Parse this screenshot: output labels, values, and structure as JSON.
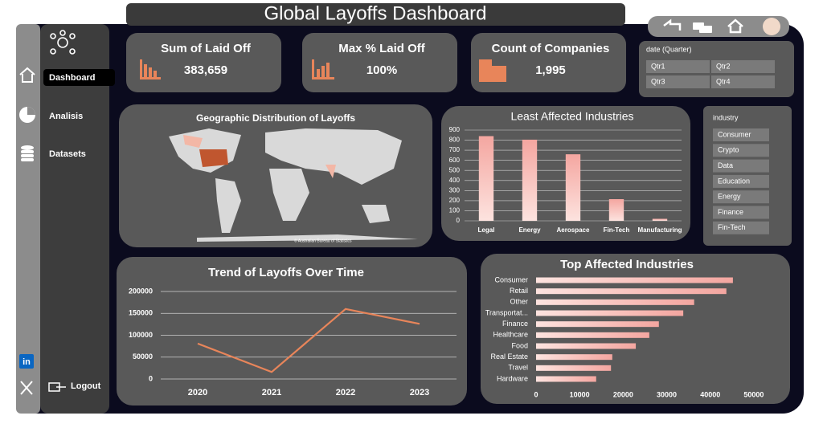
{
  "header": {
    "title": "Global Layoffs Dashboard"
  },
  "nav": {
    "items": [
      "Dashboard",
      "Analisis",
      "Datasets"
    ],
    "logout": "Logout"
  },
  "kpis": [
    {
      "label": "Sum of Laid Off",
      "value": "383,659"
    },
    {
      "label": "Max % Laid Off",
      "value": "100%"
    },
    {
      "label": "Count of Companies",
      "value": "1,995"
    }
  ],
  "slicers": [
    {
      "title": "date (Quarter)",
      "items": [
        "Qtr1",
        "Qtr2",
        "Qtr3",
        "Qtr4"
      ]
    },
    {
      "title": "industry",
      "items": [
        "Consumer",
        "Crypto",
        "Data",
        "Education",
        "Energy",
        "Finance",
        "Fin-Tech"
      ]
    }
  ],
  "map": {
    "title": "Geographic Distribution of Layoffs",
    "attribution": "© Australian Bureau of Statistics"
  },
  "chart_data": [
    {
      "type": "bar",
      "title": "Least Affected Industries",
      "categories": [
        "Legal",
        "Energy",
        "Aerospace",
        "Fin-Tech",
        "Manufacturing"
      ],
      "values": [
        840,
        805,
        660,
        215,
        20
      ],
      "color": "#f4a6a0",
      "ylim": [
        0,
        900
      ],
      "yticks": [
        0,
        100,
        200,
        300,
        400,
        500,
        600,
        700,
        800,
        900
      ],
      "grid": true
    },
    {
      "type": "line",
      "title": "Trend of Layoffs Over Time",
      "categories": [
        "2020",
        "2021",
        "2022",
        "2023"
      ],
      "values": [
        81000,
        16000,
        160000,
        126000
      ],
      "color": "#e8855a",
      "ylim": [
        0,
        200000
      ],
      "yticks": [
        0,
        50000,
        100000,
        150000,
        200000
      ],
      "grid": true
    },
    {
      "type": "barh",
      "title": "Top Affected Industries",
      "categories": [
        "Consumer",
        "Retail",
        "Other",
        "Transportat...",
        "Finance",
        "Healthcare",
        "Food",
        "Real Estate",
        "Travel",
        "Hardware"
      ],
      "values": [
        45200,
        43700,
        36300,
        33800,
        28200,
        26000,
        22900,
        17500,
        17200,
        13800
      ],
      "color": "#f4a6a0",
      "xlim": [
        0,
        55000
      ],
      "xticks": [
        0,
        10000,
        20000,
        30000,
        40000,
        50000
      ],
      "grid": false
    }
  ]
}
